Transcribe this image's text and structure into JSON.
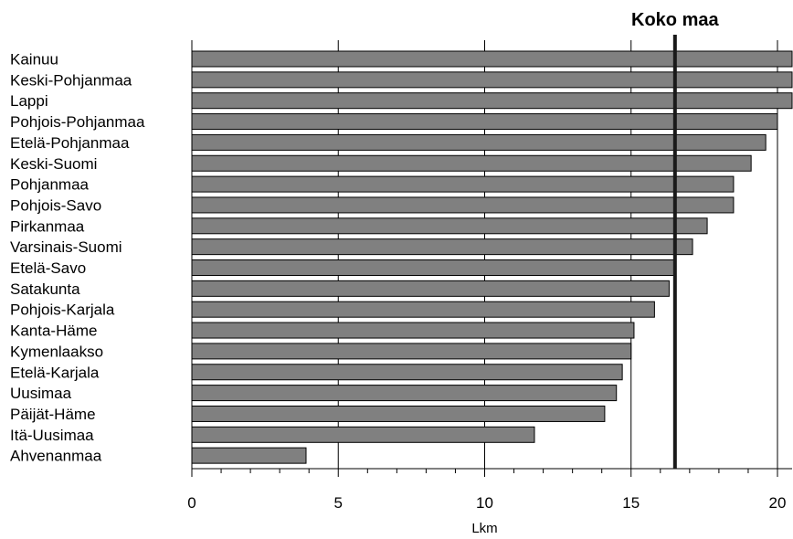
{
  "chart_data": {
    "type": "bar",
    "orientation": "horizontal",
    "categories": [
      "Kainuu",
      "Keski-Pohjanmaa",
      "Lappi",
      "Pohjois-Pohjanmaa",
      "Etelä-Pohjanmaa",
      "Keski-Suomi",
      "Pohjanmaa",
      "Pohjois-Savo",
      "Pirkanmaa",
      "Varsinais-Suomi",
      "Etelä-Savo",
      "Satakunta",
      "Pohjois-Karjala",
      "Kanta-Häme",
      "Kymenlaakso",
      "Etelä-Karjala",
      "Uusimaa",
      "Päijät-Häme",
      "Itä-Uusimaa",
      "Ahvenanmaa"
    ],
    "values": [
      20.6,
      20.6,
      20.6,
      20.0,
      19.6,
      19.1,
      18.5,
      18.5,
      17.6,
      17.1,
      16.5,
      16.3,
      15.8,
      15.1,
      15.0,
      14.7,
      14.5,
      14.1,
      11.7,
      3.9
    ],
    "xlabel": "Lkm",
    "xlim": [
      0,
      20
    ],
    "xticks": [
      "0",
      "5",
      "10",
      "15",
      "20"
    ],
    "reference_line": {
      "label": "Koko maa",
      "value": 16.5
    },
    "grid": "vertical",
    "colors": {
      "bar": "#808080",
      "bar_edge": "#000000",
      "grid": "#000000"
    }
  }
}
